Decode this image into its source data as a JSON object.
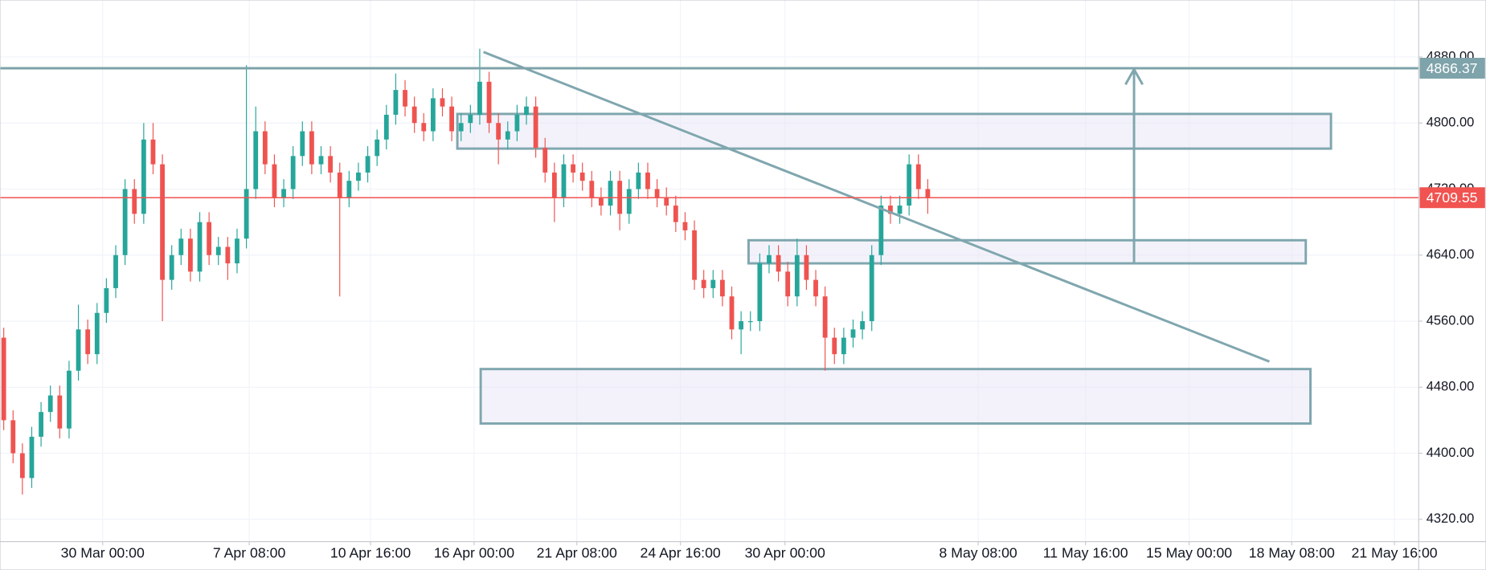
{
  "chart_data": {
    "type": "candlestick",
    "up_color": "#26a69a",
    "down_color": "#ef5350",
    "grid": true,
    "xlim": [
      -0.4,
      151.6
    ],
    "ylim": [
      4293,
      4949
    ],
    "xticks": [
      {
        "value": 10.6,
        "label": "30 Mar 00:00"
      },
      {
        "value": 26.3,
        "label": "7 Apr 08:00"
      },
      {
        "value": 39.3,
        "label": "10 Apr 16:00"
      },
      {
        "value": 50.4,
        "label": "16 Apr 00:00"
      },
      {
        "value": 61.4,
        "label": "21 Apr 08:00"
      },
      {
        "value": 72.5,
        "label": "24 Apr 16:00"
      },
      {
        "value": 83.7,
        "label": "30 Apr 00:00"
      },
      {
        "value": 104.4,
        "label": "8 May 08:00"
      },
      {
        "value": 115.9,
        "label": "11 May 16:00"
      },
      {
        "value": 127.0,
        "label": "15 May 00:00"
      },
      {
        "value": 138.0,
        "label": "18 May 08:00"
      },
      {
        "value": 149.0,
        "label": "21 May 16:00"
      }
    ],
    "yticks": [
      {
        "value": 4320,
        "label": "4320.00"
      },
      {
        "value": 4400,
        "label": "4400.00"
      },
      {
        "value": 4480,
        "label": "4480.00"
      },
      {
        "value": 4560,
        "label": "4560.00"
      },
      {
        "value": 4640,
        "label": "4640.00"
      },
      {
        "value": 4720,
        "label": "4720.00"
      },
      {
        "value": 4800,
        "label": "4800.00"
      },
      {
        "value": 4880,
        "label": "4880.00"
      }
    ],
    "open": [
      4540,
      4440,
      4400,
      4370,
      4420,
      4450,
      4470,
      4430,
      4500,
      4550,
      4520,
      4570,
      4600,
      4640,
      4720,
      4690,
      4780,
      4750,
      4610,
      4640,
      4660,
      4620,
      4680,
      4640,
      4650,
      4630,
      4660,
      4720,
      4790,
      4750,
      4710,
      4720,
      4760,
      4790,
      4750,
      4760,
      4740,
      4710,
      4730,
      4740,
      4760,
      4780,
      4810,
      4840,
      4820,
      4800,
      4790,
      4830,
      4820,
      4790,
      4800,
      4810,
      4850,
      4800,
      4780,
      4790,
      4810,
      4820,
      4770,
      4740,
      4710,
      4750,
      4740,
      4730,
      4710,
      4700,
      4730,
      4690,
      4720,
      4740,
      4720,
      4710,
      4700,
      4680,
      4670,
      4610,
      4600,
      4610,
      4590,
      4550,
      4560,
      4560,
      4630,
      4640,
      4620,
      4590,
      4640,
      4610,
      4590,
      4540,
      4520,
      4540,
      4550,
      4560,
      4640,
      4700,
      4690,
      4700,
      4750,
      4720
    ],
    "high": [
      4552,
      4452,
      4412,
      4432,
      4462,
      4482,
      4482,
      4512,
      4580,
      4562,
      4582,
      4612,
      4652,
      4732,
      4732,
      4800,
      4800,
      4762,
      4652,
      4672,
      4672,
      4692,
      4692,
      4662,
      4662,
      4672,
      4870,
      4820,
      4802,
      4762,
      4732,
      4772,
      4802,
      4802,
      4772,
      4772,
      4752,
      4742,
      4752,
      4772,
      4792,
      4822,
      4860,
      4852,
      4832,
      4812,
      4842,
      4842,
      4832,
      4812,
      4822,
      4890,
      4862,
      4812,
      4802,
      4822,
      4832,
      4832,
      4782,
      4752,
      4762,
      4762,
      4752,
      4742,
      4722,
      4742,
      4742,
      4732,
      4752,
      4752,
      4732,
      4722,
      4712,
      4692,
      4682,
      4622,
      4622,
      4622,
      4602,
      4572,
      4572,
      4642,
      4652,
      4652,
      4632,
      4660,
      4652,
      4622,
      4602,
      4552,
      4552,
      4562,
      4572,
      4652,
      4712,
      4712,
      4712,
      4762,
      4762,
      4732
    ],
    "low": [
      4428,
      4388,
      4350,
      4358,
      4408,
      4438,
      4418,
      4418,
      4488,
      4508,
      4508,
      4558,
      4588,
      4628,
      4678,
      4678,
      4738,
      4560,
      4598,
      4628,
      4608,
      4608,
      4628,
      4628,
      4610,
      4618,
      4648,
      4708,
      4738,
      4698,
      4698,
      4708,
      4748,
      4738,
      4738,
      4728,
      4590,
      4698,
      4718,
      4728,
      4748,
      4768,
      4798,
      4808,
      4788,
      4778,
      4778,
      4808,
      4778,
      4778,
      4788,
      4798,
      4788,
      4750,
      4768,
      4778,
      4798,
      4758,
      4728,
      4680,
      4698,
      4728,
      4718,
      4698,
      4688,
      4688,
      4670,
      4678,
      4708,
      4708,
      4698,
      4688,
      4668,
      4658,
      4598,
      4588,
      4588,
      4578,
      4538,
      4520,
      4548,
      4548,
      4618,
      4608,
      4578,
      4578,
      4598,
      4578,
      4500,
      4508,
      4508,
      4528,
      4538,
      4548,
      4628,
      4678,
      4678,
      4688,
      4708,
      4690
    ],
    "close": [
      4440,
      4400,
      4370,
      4420,
      4450,
      4470,
      4430,
      4500,
      4550,
      4520,
      4570,
      4600,
      4640,
      4720,
      4690,
      4780,
      4750,
      4610,
      4640,
      4660,
      4620,
      4680,
      4640,
      4650,
      4630,
      4660,
      4720,
      4790,
      4750,
      4710,
      4720,
      4760,
      4790,
      4750,
      4760,
      4740,
      4710,
      4730,
      4740,
      4760,
      4780,
      4810,
      4840,
      4820,
      4800,
      4790,
      4830,
      4820,
      4790,
      4800,
      4810,
      4850,
      4800,
      4780,
      4790,
      4810,
      4820,
      4770,
      4740,
      4710,
      4750,
      4740,
      4730,
      4710,
      4700,
      4730,
      4690,
      4720,
      4740,
      4720,
      4710,
      4700,
      4680,
      4670,
      4610,
      4600,
      4610,
      4590,
      4550,
      4560,
      4560,
      4630,
      4640,
      4620,
      4590,
      4640,
      4610,
      4590,
      4540,
      4520,
      4540,
      4550,
      4560,
      4640,
      4700,
      4690,
      4700,
      4750,
      4720,
      4710
    ],
    "price_lines": [
      {
        "value": 4866.37,
        "color": "#7ea3aa"
      },
      {
        "value": 4709.55,
        "color": "#f05350"
      }
    ],
    "zones": [
      {
        "x": [
          48.6,
          142.2
        ],
        "y": [
          4769,
          4811
        ]
      },
      {
        "x": [
          79.8,
          139.5
        ],
        "y": [
          4630,
          4658
        ]
      },
      {
        "x": [
          51.1,
          140.0
        ],
        "y": [
          4436,
          4502
        ]
      }
    ],
    "trendline": {
      "x": [
        51.4,
        135.6
      ],
      "y": [
        4886,
        4511
      ]
    },
    "arrow": {
      "x": 121.1,
      "y": [
        4631,
        4865
      ]
    }
  }
}
